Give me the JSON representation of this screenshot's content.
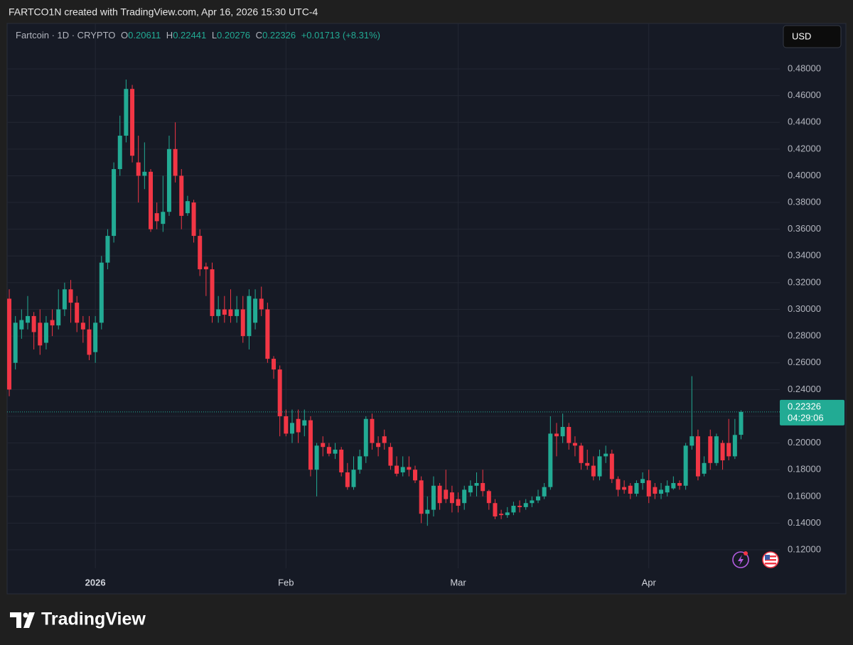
{
  "header": "FARTCO1N created with TradingView.com, Apr 16, 2026 15:30 UTC-4",
  "currency": "USD",
  "brand": "TradingView",
  "chart_data": {
    "type": "candlestick",
    "legend": {
      "symbol": "Fartcoin · 1D · CRYPTO",
      "labels": [
        "O",
        "H",
        "L",
        "C"
      ],
      "change": "+0.01713 (+8.31%)"
    },
    "countdown": "04:29:06",
    "up_color": "#22ab94",
    "down_color": "#f23645",
    "grid": true,
    "xlim": [
      -0.35,
      125.3
    ],
    "xticks": [
      {
        "value": 14,
        "label": "2026"
      },
      {
        "value": 45,
        "label": "Feb"
      },
      {
        "value": 73,
        "label": "Mar"
      },
      {
        "value": 104,
        "label": "Apr"
      }
    ],
    "ylim": [
      0.1062,
      0.5103
    ],
    "yticks": [
      {
        "value": 0.12,
        "label": "0.12000"
      },
      {
        "value": 0.14,
        "label": "0.14000"
      },
      {
        "value": 0.16,
        "label": "0.16000"
      },
      {
        "value": 0.18,
        "label": "0.18000"
      },
      {
        "value": 0.2,
        "label": "0.20000"
      },
      {
        "value": 0.22,
        "label": "0.22000"
      },
      {
        "value": 0.24,
        "label": "0.24000"
      },
      {
        "value": 0.26,
        "label": "0.26000"
      },
      {
        "value": 0.28,
        "label": "0.28000"
      },
      {
        "value": 0.3,
        "label": "0.30000"
      },
      {
        "value": 0.32,
        "label": "0.32000"
      },
      {
        "value": 0.34,
        "label": "0.34000"
      },
      {
        "value": 0.36,
        "label": "0.36000"
      },
      {
        "value": 0.38,
        "label": "0.38000"
      },
      {
        "value": 0.4,
        "label": "0.40000"
      },
      {
        "value": 0.42,
        "label": "0.42000"
      },
      {
        "value": 0.44,
        "label": "0.44000"
      },
      {
        "value": 0.46,
        "label": "0.46000"
      },
      {
        "value": 0.48,
        "label": "0.48000"
      }
    ],
    "x": [
      0,
      1,
      2,
      3,
      4,
      5,
      6,
      7,
      8,
      9,
      10,
      11,
      12,
      13,
      14,
      15,
      16,
      17,
      18,
      19,
      20,
      21,
      22,
      23,
      24,
      25,
      26,
      27,
      28,
      29,
      30,
      31,
      32,
      33,
      34,
      35,
      36,
      37,
      38,
      39,
      40,
      41,
      42,
      43,
      44,
      45,
      46,
      47,
      48,
      49,
      50,
      51,
      52,
      53,
      54,
      55,
      56,
      57,
      58,
      59,
      60,
      61,
      62,
      63,
      64,
      65,
      66,
      67,
      68,
      69,
      70,
      71,
      72,
      73,
      74,
      75,
      76,
      77,
      78,
      79,
      80,
      81,
      82,
      83,
      84,
      85,
      86,
      87,
      88,
      89,
      90,
      91,
      92,
      93,
      94,
      95,
      96,
      97,
      98,
      99,
      100,
      101,
      102,
      103,
      104,
      105,
      106,
      107,
      108,
      109,
      110,
      111,
      112,
      113,
      114,
      115,
      116,
      117,
      118,
      119
    ],
    "open": [
      0.308,
      0.26,
      0.285,
      0.29,
      0.295,
      0.29,
      0.275,
      0.292,
      0.288,
      0.3,
      0.315,
      0.305,
      0.29,
      0.285,
      0.268,
      0.29,
      0.335,
      0.355,
      0.405,
      0.43,
      0.465,
      0.41,
      0.4,
      0.403,
      0.372,
      0.364,
      0.373,
      0.42,
      0.4,
      0.372,
      0.38,
      0.355,
      0.332,
      0.33,
      0.295,
      0.3,
      0.3,
      0.295,
      0.3,
      0.28,
      0.29,
      0.308,
      0.3,
      0.263,
      0.255,
      0.22,
      0.207,
      0.218,
      0.213,
      0.217,
      0.18,
      0.2,
      0.197,
      0.192,
      0.195,
      0.178,
      0.167,
      0.18,
      0.19,
      0.218,
      0.2,
      0.205,
      0.197,
      0.183,
      0.178,
      0.182,
      0.18,
      0.172,
      0.147,
      0.15,
      0.168,
      0.165,
      0.163,
      0.158,
      0.155,
      0.163,
      0.168,
      0.17,
      0.164,
      0.155,
      0.147,
      0.146,
      0.148,
      0.153,
      0.152,
      0.155,
      0.157,
      0.16,
      0.167,
      0.207,
      0.205,
      0.212,
      0.2,
      0.198,
      0.185,
      0.183,
      0.175,
      0.19,
      0.192,
      0.173,
      0.167,
      0.168,
      0.162,
      0.17,
      0.172,
      0.167,
      0.162,
      0.163,
      0.166,
      0.17,
      0.168,
      0.198,
      0.205,
      0.177,
      0.205,
      0.185,
      0.2,
      0.2,
      0.19,
      0.20611
    ],
    "high": [
      0.315,
      0.295,
      0.3,
      0.31,
      0.298,
      0.3,
      0.295,
      0.3,
      0.315,
      0.32,
      0.322,
      0.31,
      0.295,
      0.295,
      0.295,
      0.34,
      0.36,
      0.41,
      0.445,
      0.472,
      0.468,
      0.43,
      0.425,
      0.405,
      0.38,
      0.4,
      0.43,
      0.44,
      0.405,
      0.385,
      0.382,
      0.36,
      0.335,
      0.335,
      0.31,
      0.31,
      0.315,
      0.31,
      0.31,
      0.315,
      0.315,
      0.317,
      0.305,
      0.265,
      0.258,
      0.225,
      0.225,
      0.225,
      0.225,
      0.22,
      0.2,
      0.205,
      0.2,
      0.2,
      0.197,
      0.185,
      0.19,
      0.195,
      0.22,
      0.222,
      0.205,
      0.21,
      0.2,
      0.19,
      0.19,
      0.19,
      0.183,
      0.175,
      0.16,
      0.175,
      0.17,
      0.18,
      0.168,
      0.163,
      0.168,
      0.172,
      0.178,
      0.18,
      0.165,
      0.158,
      0.15,
      0.152,
      0.156,
      0.157,
      0.158,
      0.16,
      0.165,
      0.17,
      0.22,
      0.215,
      0.222,
      0.215,
      0.205,
      0.2,
      0.195,
      0.19,
      0.195,
      0.198,
      0.195,
      0.175,
      0.172,
      0.17,
      0.172,
      0.178,
      0.18,
      0.17,
      0.17,
      0.172,
      0.175,
      0.172,
      0.2,
      0.25,
      0.21,
      0.19,
      0.21,
      0.207,
      0.202,
      0.218,
      0.218,
      0.22441
    ],
    "low": [
      0.235,
      0.255,
      0.278,
      0.285,
      0.27,
      0.266,
      0.27,
      0.28,
      0.285,
      0.295,
      0.29,
      0.283,
      0.275,
      0.262,
      0.26,
      0.285,
      0.33,
      0.35,
      0.4,
      0.425,
      0.41,
      0.38,
      0.39,
      0.358,
      0.36,
      0.358,
      0.37,
      0.395,
      0.36,
      0.37,
      0.35,
      0.325,
      0.31,
      0.29,
      0.29,
      0.29,
      0.29,
      0.29,
      0.275,
      0.27,
      0.285,
      0.295,
      0.26,
      0.248,
      0.205,
      0.205,
      0.2,
      0.2,
      0.205,
      0.175,
      0.16,
      0.19,
      0.19,
      0.188,
      0.175,
      0.165,
      0.165,
      0.177,
      0.185,
      0.195,
      0.19,
      0.195,
      0.18,
      0.175,
      0.175,
      0.175,
      0.17,
      0.14,
      0.138,
      0.145,
      0.15,
      0.155,
      0.148,
      0.148,
      0.15,
      0.16,
      0.16,
      0.16,
      0.15,
      0.143,
      0.143,
      0.144,
      0.146,
      0.148,
      0.15,
      0.152,
      0.155,
      0.158,
      0.165,
      0.19,
      0.2,
      0.195,
      0.19,
      0.18,
      0.18,
      0.172,
      0.172,
      0.185,
      0.17,
      0.16,
      0.162,
      0.158,
      0.16,
      0.165,
      0.155,
      0.158,
      0.158,
      0.16,
      0.165,
      0.165,
      0.165,
      0.195,
      0.172,
      0.175,
      0.18,
      0.183,
      0.18,
      0.187,
      0.188,
      0.20276
    ],
    "close": [
      0.24,
      0.29,
      0.292,
      0.295,
      0.283,
      0.273,
      0.29,
      0.288,
      0.3,
      0.315,
      0.305,
      0.29,
      0.285,
      0.266,
      0.29,
      0.335,
      0.355,
      0.405,
      0.43,
      0.465,
      0.415,
      0.4,
      0.403,
      0.36,
      0.366,
      0.373,
      0.42,
      0.4,
      0.37,
      0.381,
      0.355,
      0.33,
      0.33,
      0.295,
      0.3,
      0.296,
      0.295,
      0.3,
      0.28,
      0.31,
      0.308,
      0.3,
      0.263,
      0.255,
      0.22,
      0.207,
      0.215,
      0.208,
      0.217,
      0.18,
      0.198,
      0.197,
      0.192,
      0.195,
      0.178,
      0.167,
      0.18,
      0.19,
      0.218,
      0.2,
      0.197,
      0.2,
      0.183,
      0.177,
      0.182,
      0.18,
      0.172,
      0.147,
      0.15,
      0.168,
      0.155,
      0.158,
      0.155,
      0.153,
      0.165,
      0.168,
      0.17,
      0.164,
      0.155,
      0.145,
      0.146,
      0.148,
      0.153,
      0.152,
      0.155,
      0.157,
      0.16,
      0.167,
      0.207,
      0.205,
      0.212,
      0.2,
      0.198,
      0.185,
      0.183,
      0.175,
      0.19,
      0.192,
      0.173,
      0.165,
      0.165,
      0.162,
      0.17,
      0.173,
      0.16,
      0.162,
      0.165,
      0.168,
      0.17,
      0.168,
      0.198,
      0.205,
      0.175,
      0.185,
      0.185,
      0.205,
      0.187,
      0.19,
      0.206,
      0.22326
    ]
  }
}
